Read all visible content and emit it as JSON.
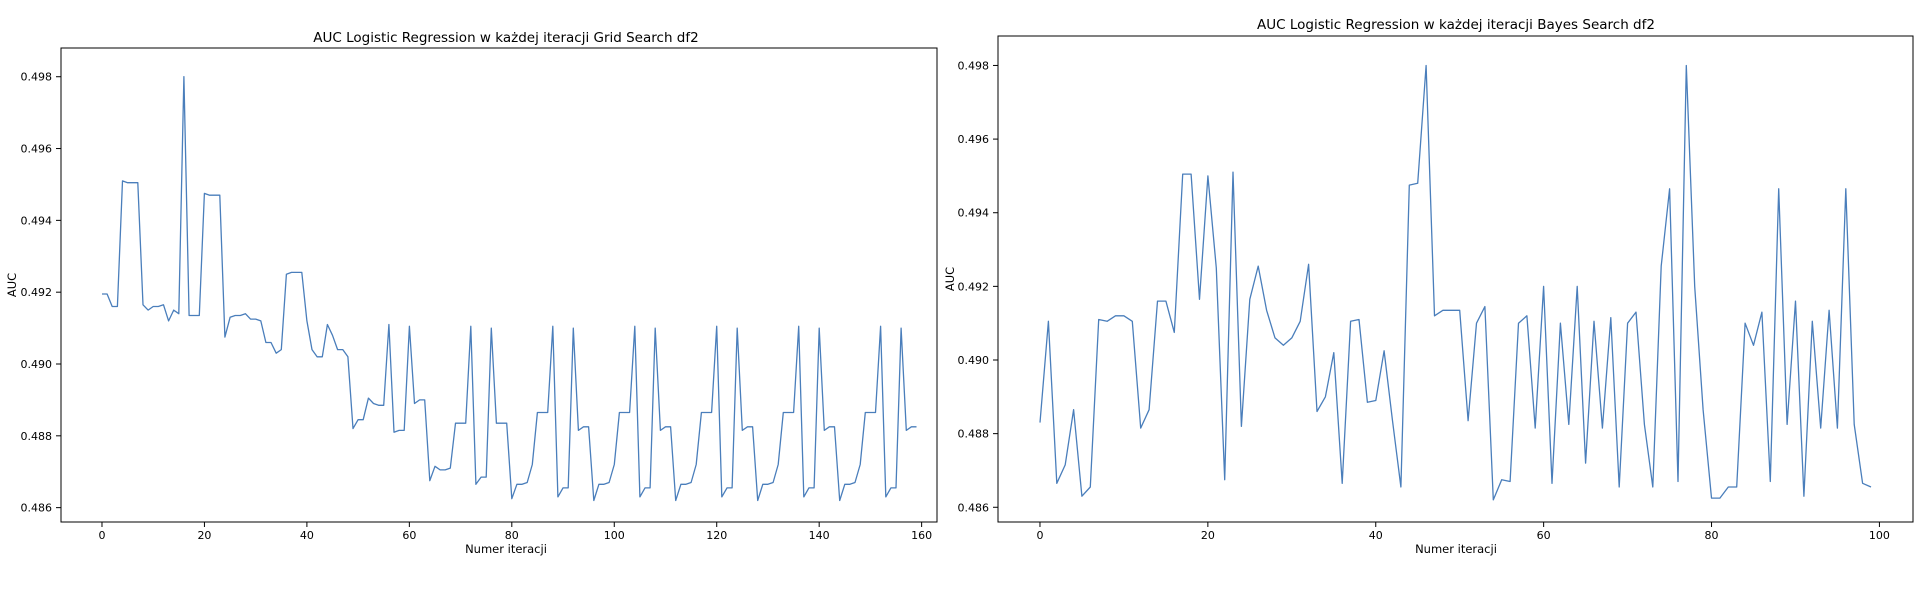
{
  "chart_data": [
    {
      "type": "line",
      "title": "AUC Logistic Regression w każdej iteracji Grid Search df2",
      "xlabel": "Numer iteracji",
      "ylabel": "AUC",
      "xlim": [
        -8,
        163
      ],
      "ylim": [
        0.4856,
        0.4988
      ],
      "xticks": [
        0,
        20,
        40,
        60,
        80,
        100,
        120,
        140,
        160
      ],
      "yticks": [
        0.486,
        0.488,
        0.49,
        0.492,
        0.494,
        0.496,
        0.498
      ],
      "ytick_labels": [
        "0.486",
        "0.488",
        "0.490",
        "0.492",
        "0.494",
        "0.496",
        "0.498"
      ],
      "grid": false,
      "series": [
        {
          "color": "#4a7ebb",
          "x": [
            0,
            1,
            2,
            3,
            4,
            5,
            6,
            7,
            8,
            9,
            10,
            11,
            12,
            13,
            14,
            15,
            16,
            17,
            18,
            19,
            20,
            21,
            22,
            23,
            24,
            25,
            26,
            27,
            28,
            29,
            30,
            31,
            32,
            33,
            34,
            35,
            36,
            37,
            38,
            39,
            40,
            41,
            42,
            43,
            44,
            45,
            46,
            47,
            48,
            49,
            50,
            51,
            52,
            53,
            54,
            55,
            56,
            57,
            58,
            59,
            60,
            61,
            62,
            63,
            64,
            65,
            66,
            67,
            68,
            69,
            70,
            71,
            72,
            73,
            74,
            75,
            76,
            77,
            78,
            79,
            80,
            81,
            82,
            83,
            84,
            85,
            86,
            87,
            88,
            89,
            90,
            91,
            92,
            93,
            94,
            95,
            96,
            97,
            98,
            99,
            100,
            101,
            102,
            103,
            104,
            105,
            106,
            107,
            108,
            109,
            110,
            111,
            112,
            113,
            114,
            115,
            116,
            117,
            118,
            119,
            120,
            121,
            122,
            123,
            124,
            125,
            126,
            127,
            128,
            129,
            130,
            131,
            132,
            133,
            134,
            135,
            136,
            137,
            138,
            139,
            140,
            141,
            142,
            143,
            144,
            145,
            146,
            147,
            148,
            149,
            150,
            151,
            152,
            153,
            154,
            155,
            156,
            157,
            158,
            159
          ],
          "y": [
            0.49195,
            0.49195,
            0.4916,
            0.4916,
            0.4951,
            0.49505,
            0.49505,
            0.49505,
            0.49165,
            0.4915,
            0.4916,
            0.4916,
            0.49165,
            0.4912,
            0.4915,
            0.4914,
            0.498,
            0.49135,
            0.49135,
            0.49135,
            0.49475,
            0.4947,
            0.4947,
            0.4947,
            0.49075,
            0.4913,
            0.49135,
            0.49135,
            0.4914,
            0.49125,
            0.49125,
            0.4912,
            0.4906,
            0.4906,
            0.4903,
            0.4904,
            0.4925,
            0.49255,
            0.49255,
            0.49255,
            0.4912,
            0.4904,
            0.4902,
            0.4902,
            0.4911,
            0.4908,
            0.4904,
            0.4904,
            0.4902,
            0.4882,
            0.48845,
            0.48845,
            0.48905,
            0.4889,
            0.48885,
            0.48885,
            0.4911,
            0.4881,
            0.48815,
            0.48815,
            0.49105,
            0.4889,
            0.489,
            0.489,
            0.48675,
            0.48715,
            0.48705,
            0.48705,
            0.4871,
            0.48835,
            0.48835,
            0.48835,
            0.49105,
            0.48665,
            0.48685,
            0.48685,
            0.491,
            0.48835,
            0.48835,
            0.48835,
            0.48625,
            0.48665,
            0.48665,
            0.4867,
            0.4872,
            0.48865,
            0.48865,
            0.48865,
            0.49105,
            0.4863,
            0.48655,
            0.48655,
            0.491,
            0.48815,
            0.48825,
            0.48825,
            0.4862,
            0.48665,
            0.48665,
            0.4867,
            0.4872,
            0.48865,
            0.48865,
            0.48865,
            0.49105,
            0.4863,
            0.48655,
            0.48655,
            0.491,
            0.48815,
            0.48825,
            0.48825,
            0.4862,
            0.48665,
            0.48665,
            0.4867,
            0.4872,
            0.48865,
            0.48865,
            0.48865,
            0.49105,
            0.4863,
            0.48655,
            0.48655,
            0.491,
            0.48815,
            0.48825,
            0.48825,
            0.4862,
            0.48665,
            0.48665,
            0.4867,
            0.4872,
            0.48865,
            0.48865,
            0.48865,
            0.49105,
            0.4863,
            0.48655,
            0.48655,
            0.491,
            0.48815,
            0.48825,
            0.48825,
            0.4862,
            0.48665,
            0.48665,
            0.4867,
            0.4872,
            0.48865,
            0.48865,
            0.48865,
            0.49105,
            0.4863,
            0.48655,
            0.48655,
            0.491,
            0.48815,
            0.48825,
            0.48825
          ]
        }
      ]
    },
    {
      "type": "line",
      "title": "AUC Logistic Regression w każdej iteracji Bayes Search df2",
      "xlabel": "Numer iteracji",
      "ylabel": "AUC",
      "xlim": [
        -5,
        104
      ],
      "ylim": [
        0.4856,
        0.4988
      ],
      "xticks": [
        0,
        20,
        40,
        60,
        80,
        100
      ],
      "yticks": [
        0.486,
        0.488,
        0.49,
        0.492,
        0.494,
        0.496,
        0.498
      ],
      "ytick_labels": [
        "0.486",
        "0.488",
        "0.490",
        "0.492",
        "0.494",
        "0.496",
        "0.498"
      ],
      "grid": false,
      "series": [
        {
          "color": "#4a7ebb",
          "x": [
            0,
            1,
            2,
            3,
            4,
            5,
            6,
            7,
            8,
            9,
            10,
            11,
            12,
            13,
            14,
            15,
            16,
            17,
            18,
            19,
            20,
            21,
            22,
            23,
            24,
            25,
            26,
            27,
            28,
            29,
            30,
            31,
            32,
            33,
            34,
            35,
            36,
            37,
            38,
            39,
            40,
            41,
            42,
            43,
            44,
            45,
            46,
            47,
            48,
            49,
            50,
            51,
            52,
            53,
            54,
            55,
            56,
            57,
            58,
            59,
            60,
            61,
            62,
            63,
            64,
            65,
            66,
            67,
            68,
            69,
            70,
            71,
            72,
            73,
            74,
            75,
            76,
            77,
            78,
            79,
            80,
            81,
            82,
            83,
            84,
            85,
            86,
            87,
            88,
            89,
            90,
            91,
            92,
            93,
            94,
            95,
            96,
            97,
            98,
            99
          ],
          "y": [
            0.4883,
            0.49105,
            0.48665,
            0.48715,
            0.48865,
            0.4863,
            0.48655,
            0.4911,
            0.49105,
            0.4912,
            0.4912,
            0.49105,
            0.48815,
            0.48865,
            0.4916,
            0.4916,
            0.49075,
            0.49505,
            0.49505,
            0.49165,
            0.495,
            0.4925,
            0.48675,
            0.4951,
            0.4882,
            0.49165,
            0.49255,
            0.49135,
            0.4906,
            0.4904,
            0.4906,
            0.49105,
            0.4926,
            0.4886,
            0.489,
            0.4902,
            0.48665,
            0.49105,
            0.4911,
            0.48885,
            0.4889,
            0.49025,
            0.48835,
            0.48655,
            0.49475,
            0.4948,
            0.498,
            0.4912,
            0.49135,
            0.49135,
            0.49135,
            0.48835,
            0.491,
            0.49145,
            0.4862,
            0.48675,
            0.4867,
            0.491,
            0.4912,
            0.48815,
            0.492,
            0.48665,
            0.491,
            0.48825,
            0.492,
            0.4872,
            0.49105,
            0.48815,
            0.49115,
            0.48655,
            0.491,
            0.4913,
            0.48825,
            0.48655,
            0.49255,
            0.49465,
            0.4867,
            0.498,
            0.492,
            0.48865,
            0.48625,
            0.48625,
            0.48655,
            0.48655,
            0.491,
            0.4904,
            0.4913,
            0.4867,
            0.49465,
            0.48825,
            0.4916,
            0.4863,
            0.49105,
            0.48815,
            0.49135,
            0.48815,
            0.49465,
            0.48825,
            0.48665,
            0.48655
          ]
        }
      ]
    }
  ]
}
